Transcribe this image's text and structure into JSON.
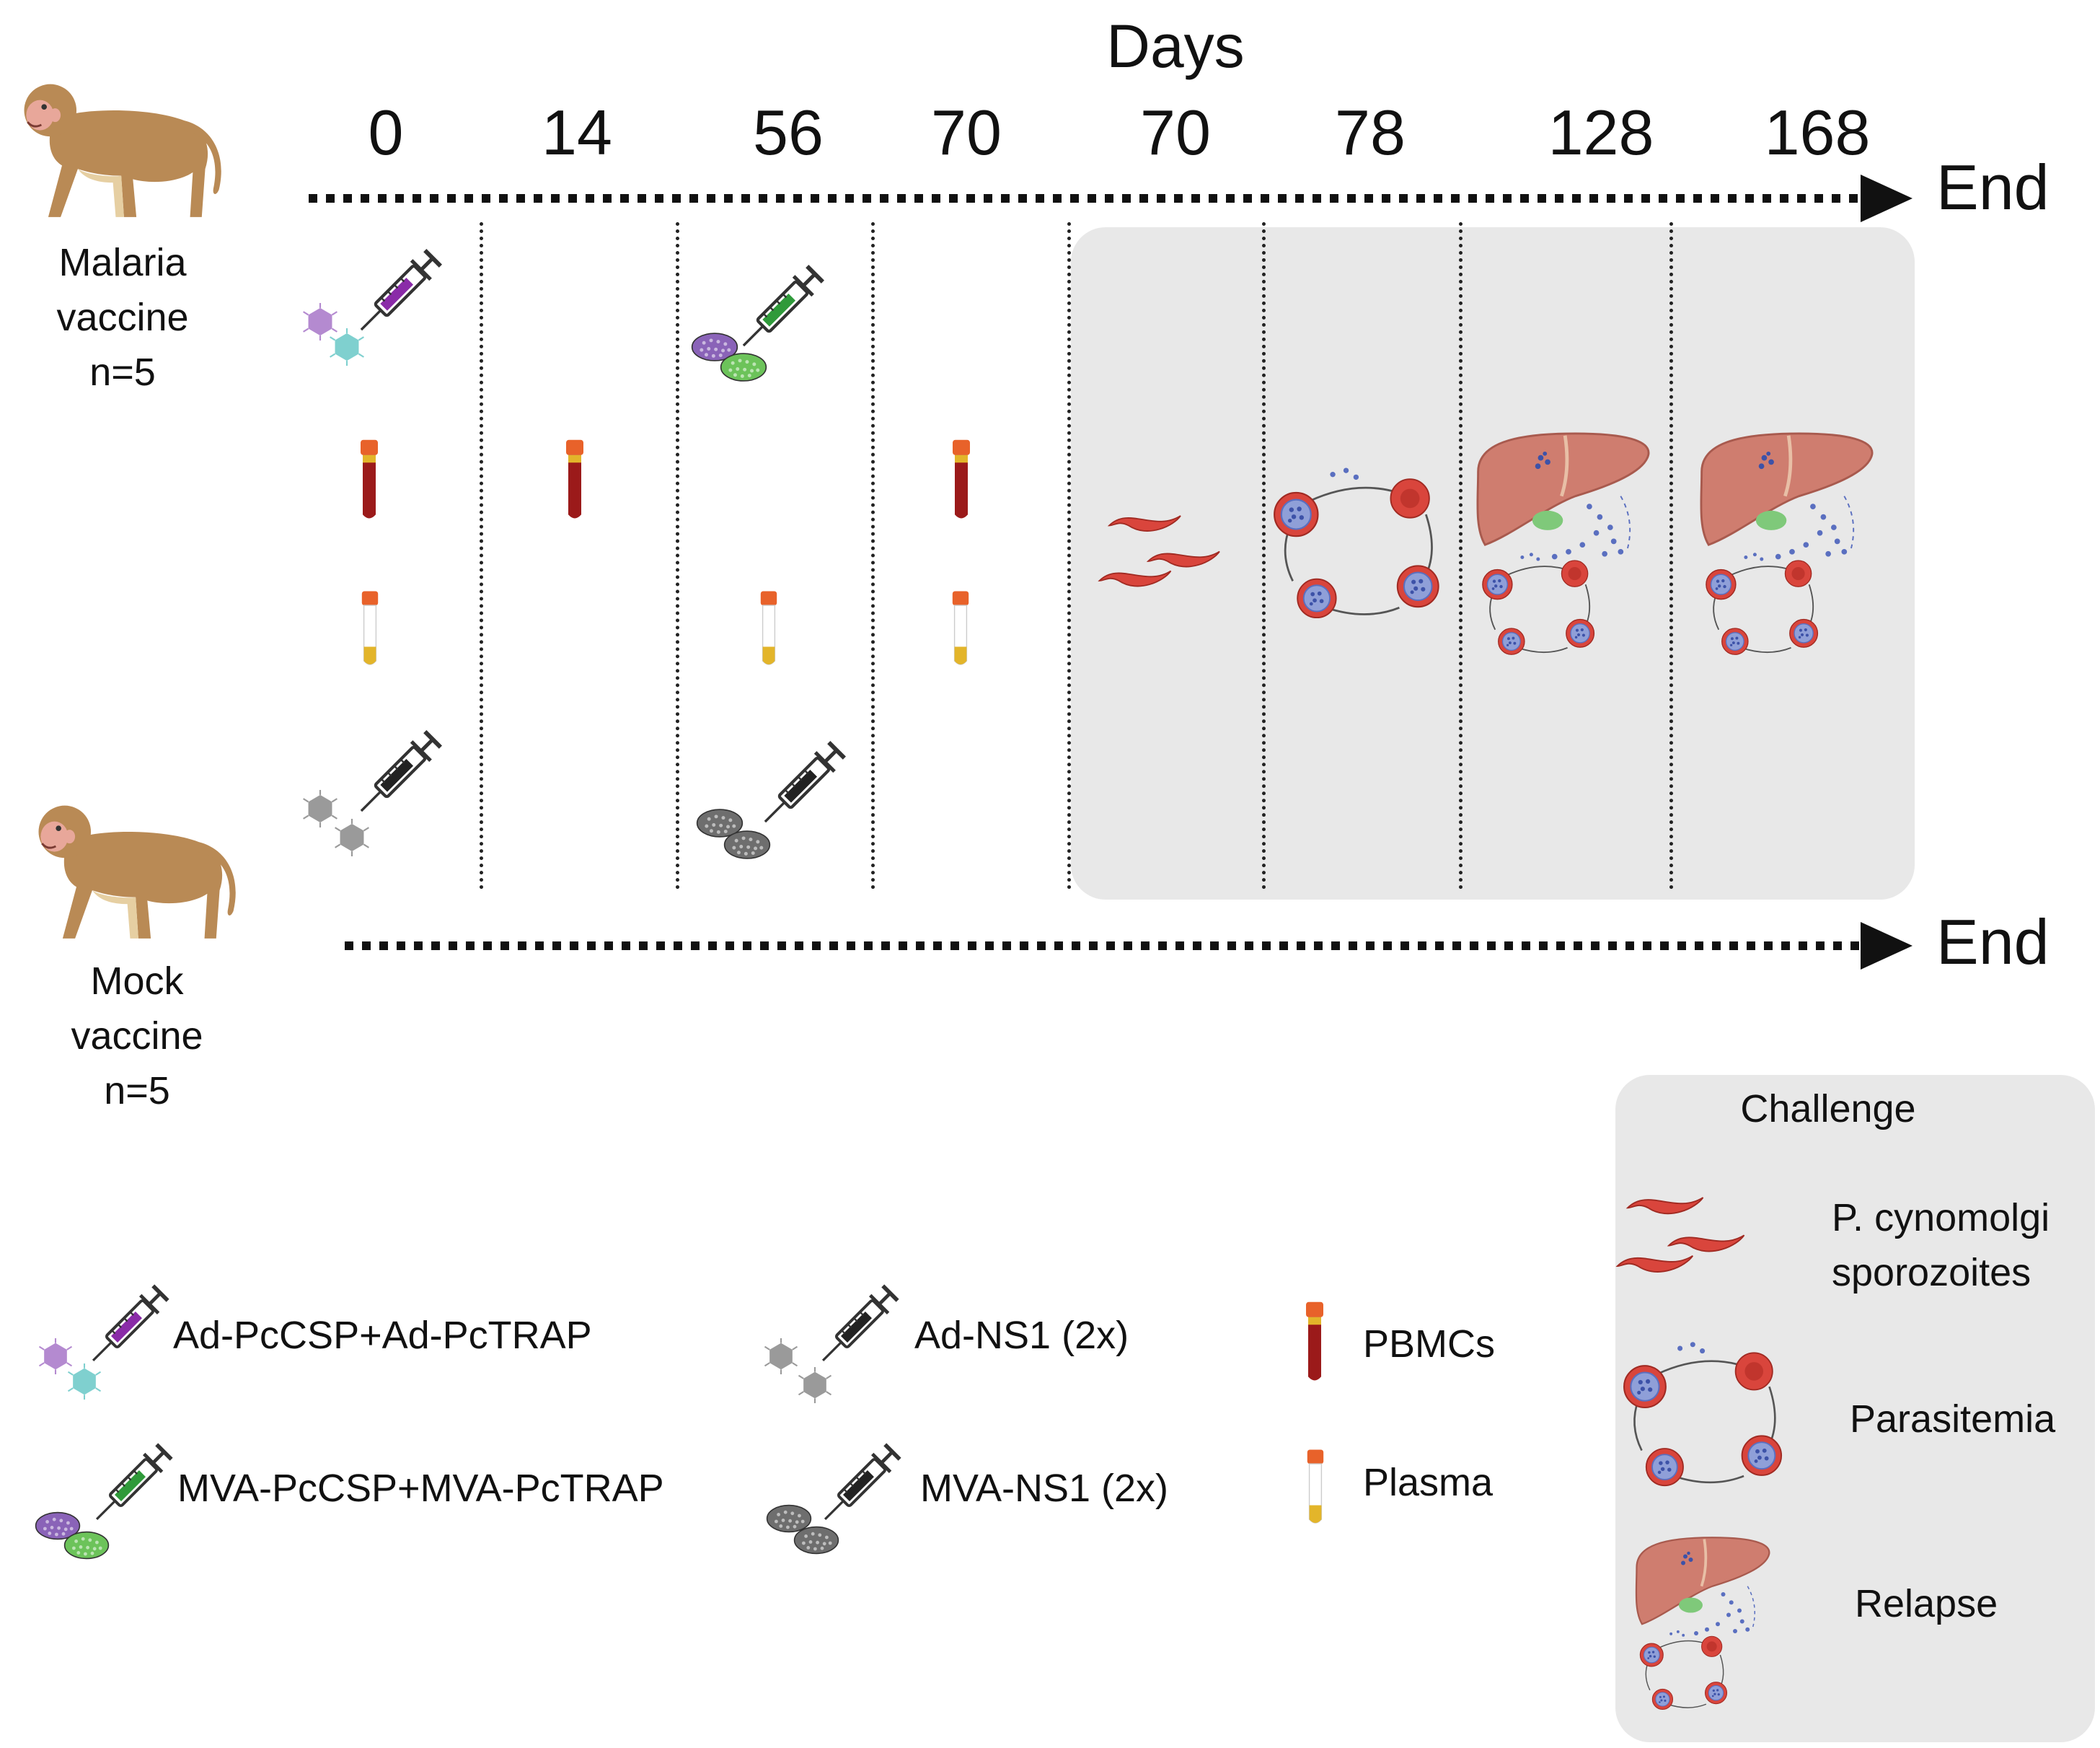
{
  "figure": {
    "title": "Days",
    "day_labels": [
      "0",
      "14",
      "56",
      "70",
      "70",
      "78",
      "128",
      "168"
    ],
    "end_label": "End"
  },
  "groups": {
    "malaria": {
      "line1": "Malaria",
      "line2": "vaccine",
      "line3": "n=5"
    },
    "mock": {
      "line1": "Mock",
      "line2": "vaccine",
      "line3": "n=5"
    }
  },
  "legend": {
    "ad_malaria": "Ad-PcCSP+Ad-PcTRAP",
    "mva_malaria": "MVA-PcCSP+MVA-PcTRAP",
    "ad_mock": "Ad-NS1 (2x)",
    "mva_mock": "MVA-NS1 (2x)",
    "pbmcs": "PBMCs",
    "plasma": "Plasma"
  },
  "challenge_legend": {
    "title": "Challenge",
    "sporozoites_line1": "P. cynomolgi",
    "sporozoites_line2": "sporozoites",
    "parasitemia": "Parasitemia",
    "relapse": "Relapse"
  },
  "colors": {
    "blood_red": "#9b1a1a",
    "tube_cap": "#e8622a",
    "plasma_yellow": "#e3b52a",
    "rbc": "#d9453c",
    "parasite_blue": "#5a6fc0",
    "liver": "#cf7d6f",
    "panel_gray": "#e8e8e8",
    "syringe_purple": "#8a2ba8",
    "syringe_green": "#2f9a3a"
  },
  "icons": [
    "monkey-icon",
    "syringe-icon",
    "virus-icon",
    "mva-particle-icon",
    "blood-tube-icon",
    "plasma-tube-icon",
    "sporozoite-icon",
    "parasitemia-cycle-icon",
    "liver-relapse-icon"
  ]
}
